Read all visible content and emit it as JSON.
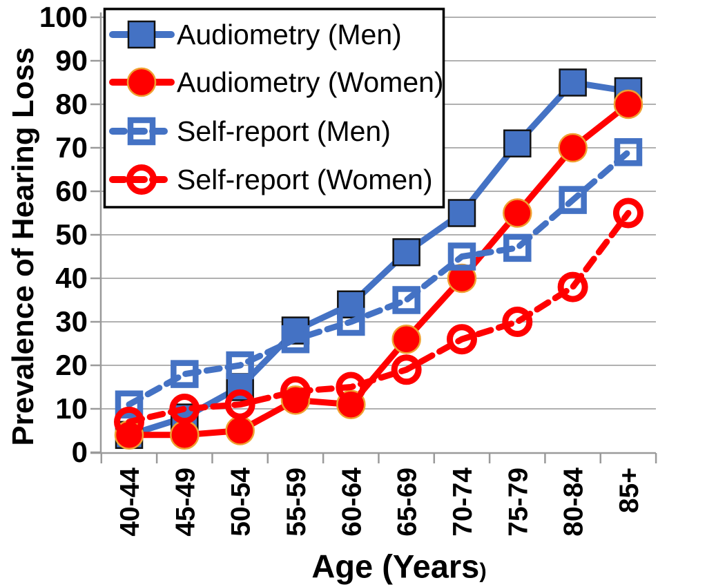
{
  "page": {
    "background": "#ffffff",
    "left_edge_line_color": "#b3b3b3",
    "bottom_strip_color": "#4472c4"
  },
  "chart_data": {
    "type": "line",
    "title": "",
    "xlabel": "Age (Years)",
    "xlabel_parts": {
      "main": "Age (Years",
      "suffix": ")"
    },
    "ylabel": "Prevalence of Hearing Loss",
    "categories": [
      "40-44",
      "45-49",
      "50-54",
      "55-59",
      "60-64",
      "65-69",
      "70-74",
      "75-79",
      "80-84",
      "85+"
    ],
    "y_axis": {
      "min": 0,
      "max": 100,
      "ticks": [
        0,
        10,
        20,
        30,
        40,
        50,
        60,
        70,
        80,
        90,
        100
      ]
    },
    "grid": "horizontal",
    "legend": {
      "position": "top-left-inside",
      "border_color": "#000000",
      "background": "#ffffff"
    },
    "colors": {
      "men_blue": "#4472c4",
      "women_red": "#ff0000",
      "gridline": "#b0b0b0",
      "axis": "#9a9a9a",
      "filled_square_outline": "#111111",
      "filled_circle_outline": "#f0a030"
    },
    "series": [
      {
        "name": "Audiometry (Men)",
        "color": "#4472c4",
        "line_style": "solid",
        "marker": "filled-square",
        "values": [
          4,
          8,
          15,
          28,
          34,
          46,
          55,
          71,
          85,
          83
        ]
      },
      {
        "name": "Audiometry (Women)",
        "color": "#ff0000",
        "line_style": "solid",
        "marker": "filled-circle",
        "values": [
          4,
          4,
          5,
          12,
          11,
          26,
          40,
          55,
          70,
          80
        ]
      },
      {
        "name": "Self-report (Men)",
        "color": "#4472c4",
        "line_style": "dashed",
        "marker": "open-square",
        "values": [
          11,
          18,
          20,
          26,
          30,
          35,
          45,
          47,
          58,
          69
        ]
      },
      {
        "name": "Self-report (Women)",
        "color": "#ff0000",
        "line_style": "dashed",
        "marker": "open-circle",
        "values": [
          7,
          10,
          11,
          14,
          15,
          19,
          26,
          30,
          38,
          55
        ]
      }
    ]
  }
}
